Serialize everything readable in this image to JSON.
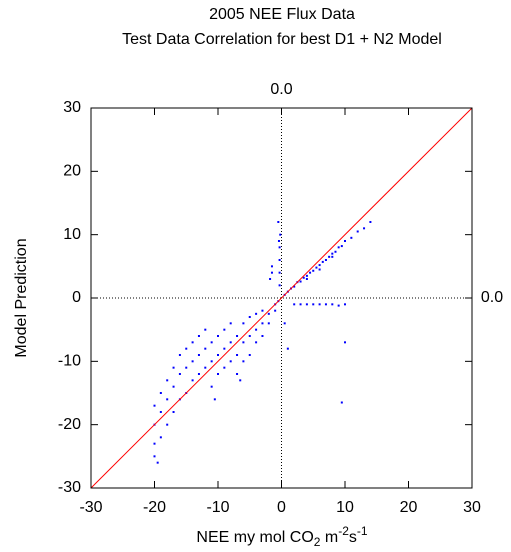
{
  "chart_data": {
    "type": "scatter",
    "title": "2005 NEE Flux Data",
    "subtitle": "Test Data Correlation for best D1 + N2 Model",
    "xlabel": [
      "NEE my mol CO",
      "2",
      " m",
      "-2",
      "s",
      "-1"
    ],
    "ylabel": "Model Prediction",
    "xlim": [
      -30,
      30
    ],
    "ylim": [
      -30,
      30
    ],
    "xticks": [
      -30,
      -20,
      -10,
      0,
      10,
      20,
      30
    ],
    "yticks": [
      -30,
      -20,
      -10,
      0,
      10,
      20,
      30
    ],
    "xzero": {
      "value": 0,
      "label": "0.0"
    },
    "yzero": {
      "value": 0,
      "label": "0.0"
    },
    "series": [
      {
        "type": "scatter",
        "color": "#0000ff",
        "x": [
          -20,
          -20,
          -20,
          -20,
          -19.5,
          -19,
          -19,
          -19,
          -18,
          -18,
          -18,
          -17,
          -17,
          -17,
          -16,
          -16,
          -16,
          -15,
          -15,
          -15,
          -14,
          -14,
          -14,
          -13,
          -13,
          -13,
          -12,
          -12,
          -12,
          -11,
          -11,
          -11,
          -10.5,
          -10,
          -10,
          -10,
          -9,
          -9,
          -9,
          -8,
          -8,
          -8,
          -7,
          -7,
          -7,
          -6.5,
          -6,
          -6,
          -6,
          -5,
          -5,
          -5,
          -4,
          -4,
          -4,
          -3,
          -3,
          -3,
          -2,
          -2,
          -1,
          -1,
          -0.5,
          0.5,
          1,
          1.5,
          2,
          2.5,
          3,
          3.5,
          4,
          4.5,
          5,
          5.5,
          6,
          6.5,
          7,
          7.5,
          8,
          8.5,
          9,
          9.5,
          10,
          11,
          12,
          13,
          14,
          6,
          8,
          4,
          -0.3,
          -0.3,
          -0.3,
          -0.3,
          -0.2,
          -0.5,
          -0.4,
          -1.5,
          -1.5,
          -1.8,
          2,
          3,
          4,
          5,
          6,
          7,
          8,
          9,
          10,
          10,
          9.5,
          0.5,
          1
        ],
        "y": [
          -20,
          -23,
          -25,
          -17,
          -26,
          -22,
          -18,
          -15,
          -20,
          -16,
          -13,
          -18,
          -14,
          -11,
          -16,
          -12,
          -9,
          -15,
          -11,
          -8,
          -13,
          -10,
          -7,
          -12,
          -9,
          -6,
          -11,
          -8,
          -5,
          -14,
          -10,
          -7,
          -16,
          -12,
          -9,
          -6,
          -11,
          -8,
          -5,
          -10,
          -7,
          -4,
          -12,
          -9,
          -6,
          -13,
          -10,
          -7,
          -4,
          -9,
          -6,
          -3,
          -7,
          -5,
          -2.5,
          -6,
          -4,
          -2,
          -4,
          -2.5,
          -2,
          -1,
          -0.5,
          0.5,
          1,
          1.5,
          1.8,
          2.5,
          2.6,
          3.2,
          3.5,
          4,
          4.3,
          4.8,
          5.2,
          5.7,
          6,
          6.5,
          7,
          7.3,
          8,
          8.2,
          9,
          9.5,
          10.5,
          11,
          12,
          4.5,
          6.5,
          3,
          2,
          4,
          6,
          8,
          10,
          12,
          9,
          5,
          4,
          3,
          -1,
          -1,
          -1,
          -1,
          -1,
          -1,
          -1,
          -1.2,
          -1,
          -7,
          -16.5,
          -4,
          -8
        ]
      },
      {
        "type": "line",
        "color": "#ff0000",
        "x": [
          -30,
          30
        ],
        "y": [
          -30,
          30
        ]
      }
    ]
  }
}
